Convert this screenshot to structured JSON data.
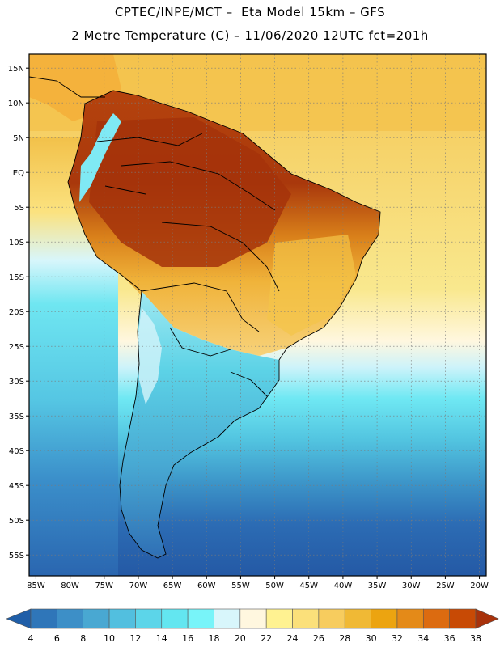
{
  "header": {
    "line1": "CPTEC/INPE/MCT –  Eta Model 15km – GFS",
    "line2": "2 Metre Temperature (C) – 11/06/2020 12UTC fct=201h"
  },
  "map": {
    "lon_range": [
      -86,
      -19
    ],
    "lat_range": [
      -58,
      17
    ],
    "lon_ticks": [
      "85W",
      "80W",
      "75W",
      "70W",
      "65W",
      "60W",
      "55W",
      "50W",
      "45W",
      "40W",
      "35W",
      "30W",
      "25W",
      "20W"
    ],
    "lat_ticks": [
      "15N",
      "10N",
      "5N",
      "EQ",
      "5S",
      "10S",
      "15S",
      "20S",
      "25S",
      "30S",
      "35S",
      "40S",
      "45S",
      "50S",
      "55S"
    ]
  },
  "colorbar": {
    "labels": [
      "4",
      "6",
      "8",
      "10",
      "12",
      "14",
      "16",
      "18",
      "20",
      "22",
      "24",
      "26",
      "28",
      "30",
      "32",
      "34",
      "36",
      "38"
    ],
    "colors": [
      "#1f5ea8",
      "#2f76b9",
      "#3d8fc7",
      "#49a8d2",
      "#52bfdf",
      "#5cd5e9",
      "#63e6f0",
      "#78f4f9",
      "#d8f6fb",
      "#fff7df",
      "#fff291",
      "#fbe07a",
      "#f7cc5e",
      "#f0b935",
      "#eca410",
      "#e48a18",
      "#dc6b10",
      "#c84a05",
      "#a8320b"
    ]
  }
}
